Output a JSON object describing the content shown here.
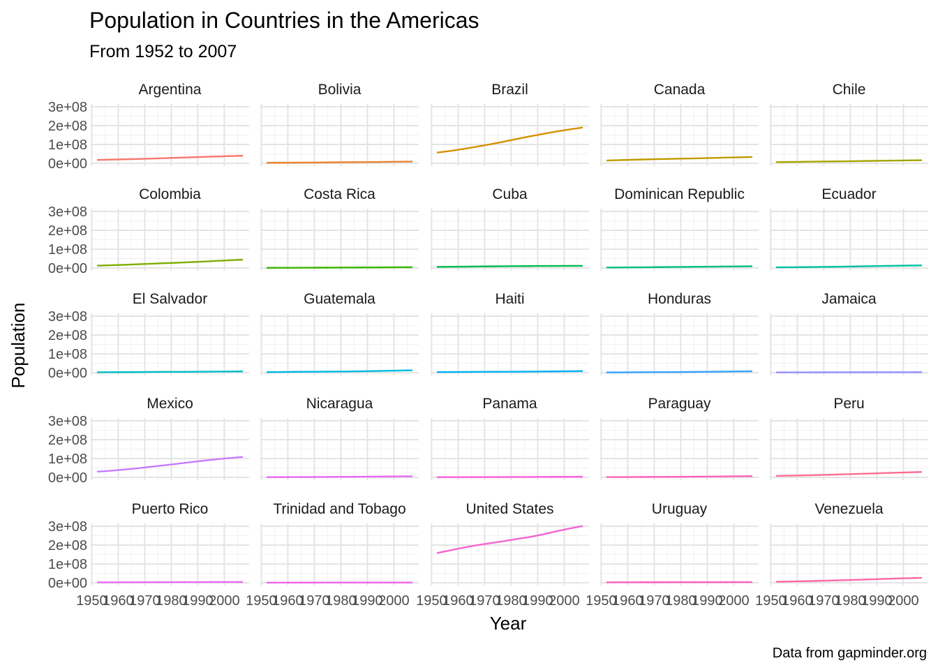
{
  "chart_data": {
    "type": "line",
    "title": "Population in Countries in the Americas",
    "subtitle": "From 1952 to 2007",
    "xlabel": "Year",
    "ylabel": "Population",
    "caption": "Data from gapminder.org",
    "xlim": [
      1952,
      2007
    ],
    "ylim": [
      0,
      300000000
    ],
    "x_ticks": [
      1950,
      1960,
      1970,
      1980,
      1990,
      2000
    ],
    "x_tick_labels": [
      "1950",
      "1960",
      "1970",
      "1980",
      "1990",
      "2000"
    ],
    "y_ticks": [
      0,
      100000000,
      200000000,
      300000000
    ],
    "y_tick_labels": [
      "0e+00",
      "1e+08",
      "2e+08",
      "3e+08"
    ],
    "grid": true,
    "legend": "none",
    "facet_columns": 5,
    "x": [
      1952,
      1957,
      1962,
      1967,
      1972,
      1977,
      1982,
      1987,
      1992,
      1997,
      2002,
      2007
    ],
    "series": [
      {
        "name": "Argentina",
        "color": "#F8766D",
        "values": [
          17876956,
          19610538,
          21283783,
          22934225,
          24779799,
          26983828,
          29341374,
          31620918,
          33958947,
          36203463,
          38331121,
          40301927
        ]
      },
      {
        "name": "Bolivia",
        "color": "#EA8331",
        "values": [
          2883315,
          3211738,
          3593918,
          4040665,
          4565872,
          5079716,
          5642224,
          6156369,
          6893451,
          7693188,
          8445134,
          9119152
        ]
      },
      {
        "name": "Brazil",
        "color": "#D89000",
        "values": [
          56602560,
          65551171,
          76039390,
          88049823,
          100840058,
          114313951,
          128962939,
          142938076,
          155975974,
          168546719,
          179914212,
          190010647
        ]
      },
      {
        "name": "Canada",
        "color": "#C09B00",
        "values": [
          14785584,
          17010154,
          18985849,
          20819767,
          22284500,
          23796400,
          25201900,
          26549700,
          28523502,
          30305843,
          31902268,
          33390141
        ]
      },
      {
        "name": "Chile",
        "color": "#A3A500",
        "values": [
          6377619,
          7048426,
          7961258,
          8858908,
          9717524,
          10599793,
          11487112,
          12463354,
          13572994,
          14599929,
          15497046,
          16284741
        ]
      },
      {
        "name": "Colombia",
        "color": "#7CAE00",
        "values": [
          12350771,
          14485993,
          17009885,
          19764027,
          22542890,
          25094412,
          27764644,
          30964245,
          34202721,
          37657830,
          41008227,
          44227550
        ]
      },
      {
        "name": "Costa Rica",
        "color": "#39B600",
        "values": [
          926317,
          1112300,
          1345187,
          1588717,
          1834796,
          2108457,
          2424367,
          2799811,
          3173216,
          3518107,
          3834934,
          4133884
        ]
      },
      {
        "name": "Cuba",
        "color": "#00BB4E",
        "values": [
          6007797,
          6640752,
          7254373,
          8139332,
          8831348,
          9537988,
          9789224,
          10239839,
          10723260,
          10983007,
          11226999,
          11416987
        ]
      },
      {
        "name": "Dominican Republic",
        "color": "#00BF7D",
        "values": [
          2491346,
          2923186,
          3453434,
          4049146,
          4671329,
          5302800,
          5968349,
          6655297,
          7351181,
          7992357,
          8650322,
          9319622
        ]
      },
      {
        "name": "Ecuador",
        "color": "#00C1A3",
        "values": [
          3548753,
          4058385,
          4681707,
          5432424,
          6298651,
          7278866,
          8365850,
          9545158,
          10748394,
          11911819,
          12921234,
          13755680
        ]
      },
      {
        "name": "El Salvador",
        "color": "#00BFC4",
        "values": [
          2042865,
          2355805,
          2747687,
          3232927,
          3790903,
          4282586,
          4474873,
          4842194,
          5274649,
          5783439,
          6353681,
          6939688
        ]
      },
      {
        "name": "Guatemala",
        "color": "#00BAE0",
        "values": [
          3146381,
          3640876,
          4208858,
          4690773,
          5149581,
          5703430,
          6395630,
          7326406,
          8486949,
          9803875,
          11178650,
          12572928
        ]
      },
      {
        "name": "Haiti",
        "color": "#00B0F6",
        "values": [
          3201488,
          3507701,
          3880130,
          4318137,
          4698301,
          4908554,
          5198399,
          5756203,
          6326682,
          6913545,
          7607651,
          8502814
        ]
      },
      {
        "name": "Honduras",
        "color": "#35A2FF",
        "values": [
          1517453,
          1770390,
          2090162,
          2500689,
          2965146,
          3055235,
          3669448,
          4372203,
          5077347,
          5867957,
          6677328,
          7483763
        ]
      },
      {
        "name": "Jamaica",
        "color": "#9590FF",
        "values": [
          1426095,
          1535090,
          1665128,
          1861096,
          1997616,
          2156814,
          2298309,
          2326606,
          2378618,
          2531311,
          2664659,
          2780132
        ]
      },
      {
        "name": "Mexico",
        "color": "#C77CFF",
        "values": [
          30144317,
          35015548,
          41121485,
          47995559,
          55984294,
          63759976,
          71640904,
          80122492,
          88111030,
          95895146,
          102479927,
          108700891
        ]
      },
      {
        "name": "Nicaragua",
        "color": "#E76BF3",
        "values": [
          1165790,
          1358828,
          1590597,
          1865490,
          2182908,
          2554598,
          2979423,
          3344353,
          4017939,
          4609572,
          5146848,
          5675356
        ]
      },
      {
        "name": "Panama",
        "color": "#FA62DB",
        "values": [
          940080,
          1063506,
          1215725,
          1405486,
          1616384,
          1839782,
          2036305,
          2253639,
          2484997,
          2734531,
          2990875,
          3242173
        ]
      },
      {
        "name": "Paraguay",
        "color": "#FF62BC",
        "values": [
          1555876,
          1770902,
          2009813,
          2287985,
          2614104,
          2984494,
          3366439,
          3886512,
          4483945,
          5154123,
          5884491,
          6667147
        ]
      },
      {
        "name": "Peru",
        "color": "#FF6C91",
        "values": [
          8025700,
          9146100,
          10516500,
          12132200,
          13954700,
          15990099,
          18125129,
          20195924,
          22430449,
          24748122,
          26769436,
          28674757
        ]
      },
      {
        "name": "Puerto Rico",
        "color": "#E76BF3",
        "values": [
          2227000,
          2260000,
          2448046,
          2648961,
          2847132,
          3080828,
          3279001,
          3444468,
          3585176,
          3759430,
          3859606,
          3942491
        ]
      },
      {
        "name": "Trinidad and Tobago",
        "color": "#EE67E8",
        "values": [
          662850,
          764900,
          887498,
          960155,
          975199,
          1039009,
          1116479,
          1191336,
          1183669,
          1138101,
          1101832,
          1056608
        ]
      },
      {
        "name": "United States",
        "color": "#F464D3",
        "values": [
          157553000,
          171984000,
          186538000,
          198712000,
          209896000,
          220239000,
          232187835,
          242803533,
          256894189,
          272911760,
          287675526,
          301139947
        ]
      },
      {
        "name": "Uruguay",
        "color": "#FB61C2",
        "values": [
          2252965,
          2424959,
          2598466,
          2748579,
          2829526,
          2873520,
          2953997,
          3045153,
          3149262,
          3262838,
          3363085,
          3447496
        ]
      },
      {
        "name": "Venezuela",
        "color": "#FF67A4",
        "values": [
          5439568,
          6702668,
          8143375,
          9709552,
          11515649,
          13503563,
          15620766,
          17910182,
          20265563,
          22374398,
          24287670,
          26084662
        ]
      }
    ]
  }
}
